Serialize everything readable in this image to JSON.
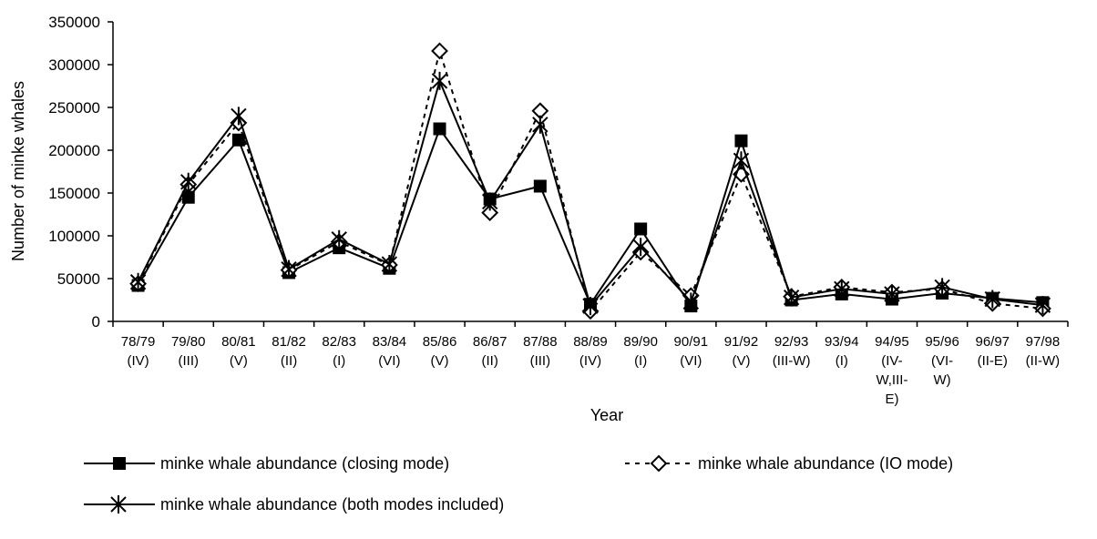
{
  "chart_data": {
    "type": "line",
    "xlabel": "Year",
    "ylabel": "Number of minke whales",
    "ylim": [
      0,
      350000
    ],
    "yticks": [
      "0",
      "50000",
      "100000",
      "150000",
      "200000",
      "250000",
      "300000",
      "350000"
    ],
    "categories": [
      [
        "78/79",
        "(IV)"
      ],
      [
        "79/80",
        "(III)"
      ],
      [
        "80/81",
        "(V)"
      ],
      [
        "81/82",
        "(II)"
      ],
      [
        "82/83",
        "(I)"
      ],
      [
        "83/84",
        "(VI)"
      ],
      [
        "85/86",
        "(V)"
      ],
      [
        "86/87",
        "(II)"
      ],
      [
        "87/88",
        "(III)"
      ],
      [
        "88/89",
        "(IV)"
      ],
      [
        "89/90",
        "(I)"
      ],
      [
        "90/91",
        "(VI)"
      ],
      [
        "91/92",
        "(V)"
      ],
      [
        "92/93",
        "(III-W)"
      ],
      [
        "93/94",
        "(I)"
      ],
      [
        "94/95",
        "(IV-",
        "W,III-",
        "E)"
      ],
      [
        "95/96",
        "(VI-",
        "W)"
      ],
      [
        "96/97",
        "(II-E)"
      ],
      [
        "97/98",
        "(II-W)"
      ]
    ],
    "grid": false,
    "legend_position": "bottom",
    "series": [
      {
        "name": "minke whale abundance (closing mode)",
        "line": "solid",
        "marker": "square-filled",
        "color": "#000000",
        "values": [
          42000,
          145000,
          212000,
          57000,
          86000,
          62000,
          225000,
          143000,
          158000,
          20000,
          108000,
          18000,
          211000,
          25000,
          32000,
          26000,
          33000,
          27000,
          22000
        ]
      },
      {
        "name": "minke whale abundance (IO mode)",
        "line": "dashed",
        "marker": "diamond-open",
        "color": "#000000",
        "values": [
          44000,
          160000,
          232000,
          60000,
          93000,
          66000,
          316000,
          127000,
          246000,
          12000,
          81000,
          30000,
          172000,
          29000,
          40000,
          34000,
          38000,
          21000,
          15000
        ]
      },
      {
        "name": "minke whale abundance (both modes included)",
        "line": "solid",
        "marker": "asterisk",
        "color": "#000000",
        "values": [
          46000,
          163000,
          240000,
          61000,
          96000,
          67000,
          281000,
          140000,
          230000,
          18000,
          87000,
          23000,
          188000,
          28000,
          38000,
          32000,
          40000,
          26000,
          19000
        ]
      }
    ]
  }
}
